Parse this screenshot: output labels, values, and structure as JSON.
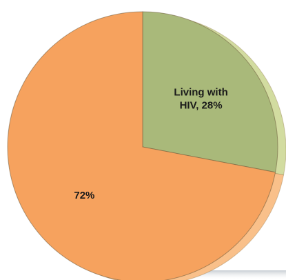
{
  "chart_data": {
    "type": "pie",
    "style": "3d-exploded",
    "title": "",
    "slices": [
      {
        "label_lines": [
          "Living with",
          "HIV, 28%"
        ],
        "value": 28,
        "color": "#a9b97a",
        "side_color": "#d2dca0"
      },
      {
        "label_lines": [
          "72%"
        ],
        "value": 72,
        "color": "#f6a25e",
        "side_color": "#f9c08a"
      }
    ],
    "start_angle_deg": -90,
    "direction": "clockwise",
    "exploded_slice": 0,
    "legend": "none"
  }
}
